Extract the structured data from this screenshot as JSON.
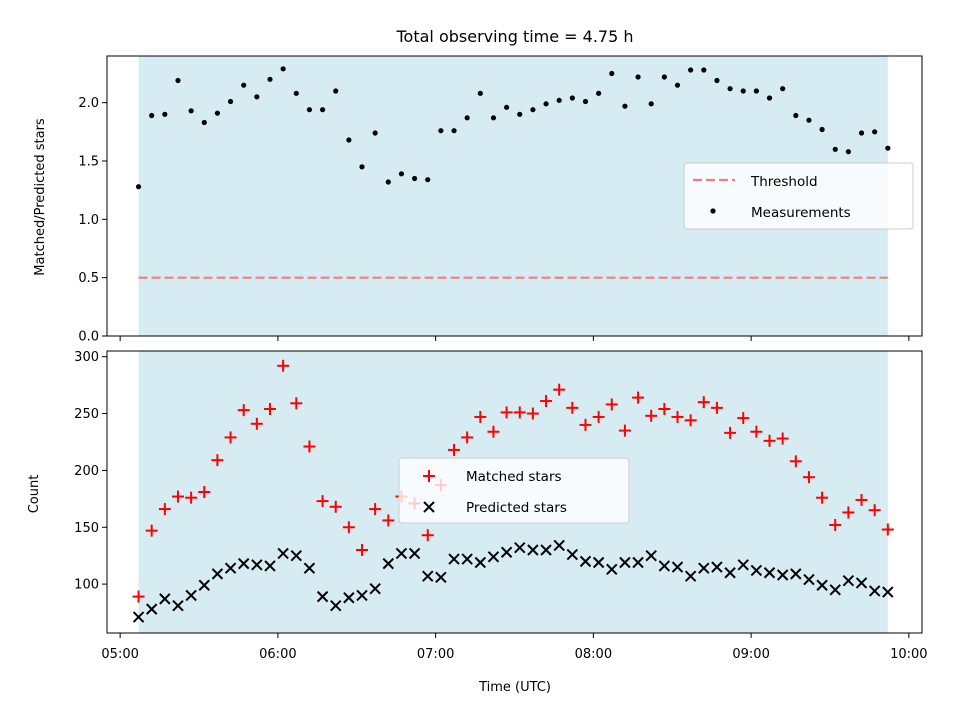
{
  "chart_data": [
    {
      "type": "scatter",
      "title": "Total observing time = 4.75 h",
      "xlabel": "",
      "ylabel": "Matched/Predicted stars",
      "xlim": [
        "04:55",
        "10:05"
      ],
      "ylim": [
        0,
        2.4
      ],
      "yticks": [
        "0.0",
        "0.5",
        "1.0",
        "1.5",
        "2.0"
      ],
      "shaded_interval": [
        "05:07",
        "09:52"
      ],
      "threshold": {
        "name": "Threshold",
        "value": 0.5,
        "x_range": [
          "05:07",
          "09:52"
        ],
        "color": "#f08080"
      },
      "legend_position": "center-right",
      "series": [
        {
          "name": "Measurements",
          "color": "#000000",
          "x": [
            "05:07",
            "05:12",
            "05:17",
            "05:22",
            "05:27",
            "05:32",
            "05:37",
            "05:42",
            "05:47",
            "05:52",
            "05:57",
            "06:02",
            "06:07",
            "06:12",
            "06:17",
            "06:22",
            "06:27",
            "06:32",
            "06:37",
            "06:42",
            "06:47",
            "06:52",
            "06:57",
            "07:02",
            "07:07",
            "07:12",
            "07:17",
            "07:22",
            "07:27",
            "07:32",
            "07:37",
            "07:42",
            "07:47",
            "07:52",
            "07:57",
            "08:02",
            "08:07",
            "08:12",
            "08:17",
            "08:22",
            "08:27",
            "08:32",
            "08:37",
            "08:42",
            "08:47",
            "08:52",
            "08:57",
            "09:02",
            "09:07",
            "09:12",
            "09:17",
            "09:22",
            "09:27",
            "09:32",
            "09:37",
            "09:42",
            "09:47",
            "09:52"
          ],
          "y": [
            1.28,
            1.89,
            1.9,
            2.19,
            1.93,
            1.83,
            1.91,
            2.01,
            2.15,
            2.05,
            2.2,
            2.29,
            2.08,
            1.94,
            1.94,
            2.1,
            1.68,
            1.45,
            1.74,
            1.32,
            1.39,
            1.35,
            1.34,
            1.76,
            1.76,
            1.87,
            2.08,
            1.87,
            1.96,
            1.9,
            1.94,
            1.99,
            2.02,
            2.04,
            2.01,
            2.08,
            2.25,
            1.97,
            2.22,
            1.99,
            2.22,
            2.15,
            2.28,
            2.28,
            2.19,
            2.12,
            2.1,
            2.1,
            2.04,
            2.12,
            1.89,
            1.85,
            1.77,
            1.6,
            1.58,
            1.74,
            1.75,
            1.61
          ]
        }
      ]
    },
    {
      "type": "scatter",
      "title": "",
      "xlabel": "Time (UTC)",
      "ylabel": "Count",
      "xlim": [
        "04:55",
        "10:05"
      ],
      "ylim": [
        57,
        305
      ],
      "yticks": [
        "100",
        "150",
        "200",
        "250",
        "300"
      ],
      "xticks": [
        "05:00",
        "06:00",
        "07:00",
        "08:00",
        "09:00",
        "10:00"
      ],
      "shaded_interval": [
        "05:07",
        "09:52"
      ],
      "legend_position": "center",
      "series": [
        {
          "name": "Matched stars",
          "marker": "+",
          "color": "#ff0000",
          "x": [
            "05:07",
            "05:12",
            "05:17",
            "05:22",
            "05:27",
            "05:32",
            "05:37",
            "05:42",
            "05:47",
            "05:52",
            "05:57",
            "06:02",
            "06:07",
            "06:12",
            "06:17",
            "06:22",
            "06:27",
            "06:32",
            "06:37",
            "06:42",
            "06:47",
            "06:52",
            "06:57",
            "07:02",
            "07:07",
            "07:12",
            "07:17",
            "07:22",
            "07:27",
            "07:32",
            "07:37",
            "07:42",
            "07:47",
            "07:52",
            "07:57",
            "08:02",
            "08:07",
            "08:12",
            "08:17",
            "08:22",
            "08:27",
            "08:32",
            "08:37",
            "08:42",
            "08:47",
            "08:52",
            "08:57",
            "09:02",
            "09:07",
            "09:12",
            "09:17",
            "09:22",
            "09:27",
            "09:32",
            "09:37",
            "09:42",
            "09:47",
            "09:52"
          ],
          "y": [
            89,
            147,
            166,
            177,
            176,
            181,
            209,
            229,
            253,
            241,
            254,
            292,
            259,
            221,
            173,
            168,
            150,
            130,
            166,
            156,
            177,
            171,
            143,
            187,
            218,
            229,
            247,
            234,
            251,
            251,
            250,
            261,
            271,
            255,
            240,
            247,
            258,
            235,
            264,
            248,
            254,
            247,
            244,
            260,
            255,
            233,
            246,
            234,
            226,
            228,
            208,
            194,
            176,
            152,
            163,
            174,
            165,
            148
          ]
        },
        {
          "name": "Predicted stars",
          "marker": "x",
          "color": "#000000",
          "x": [
            "05:07",
            "05:12",
            "05:17",
            "05:22",
            "05:27",
            "05:32",
            "05:37",
            "05:42",
            "05:47",
            "05:52",
            "05:57",
            "06:02",
            "06:07",
            "06:12",
            "06:17",
            "06:22",
            "06:27",
            "06:32",
            "06:37",
            "06:42",
            "06:47",
            "06:52",
            "06:57",
            "07:02",
            "07:07",
            "07:12",
            "07:17",
            "07:22",
            "07:27",
            "07:32",
            "07:37",
            "07:42",
            "07:47",
            "07:52",
            "07:57",
            "08:02",
            "08:07",
            "08:12",
            "08:17",
            "08:22",
            "08:27",
            "08:32",
            "08:37",
            "08:42",
            "08:47",
            "08:52",
            "08:57",
            "09:02",
            "09:07",
            "09:12",
            "09:17",
            "09:22",
            "09:27",
            "09:32",
            "09:37",
            "09:42",
            "09:47",
            "09:52"
          ],
          "y": [
            71,
            78,
            87,
            81,
            90,
            99,
            109,
            114,
            118,
            117,
            116,
            127,
            125,
            114,
            89,
            81,
            88,
            90,
            96,
            118,
            127,
            127,
            107,
            106,
            122,
            122,
            119,
            124,
            128,
            132,
            130,
            130,
            134,
            126,
            120,
            119,
            113,
            119,
            119,
            125,
            116,
            115,
            107,
            114,
            115,
            110,
            117,
            112,
            110,
            108,
            109,
            104,
            99,
            95,
            103,
            101,
            94,
            93
          ]
        }
      ]
    }
  ]
}
